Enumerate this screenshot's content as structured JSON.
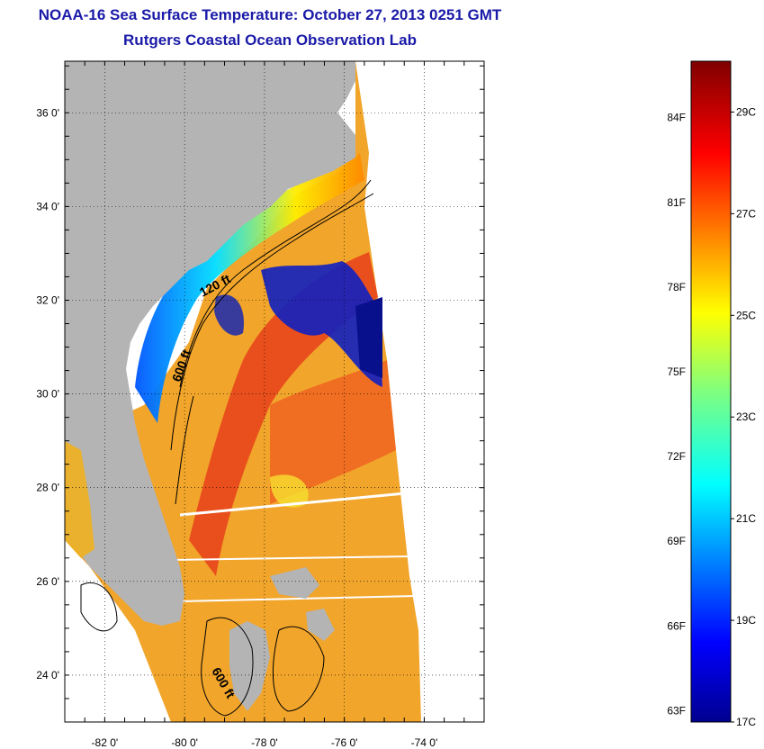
{
  "header": {
    "title": "NOAA-16 Sea Surface Temperature:  October 27, 2013 0251 GMT",
    "subtitle": "Rutgers Coastal Ocean Observation Lab"
  },
  "map": {
    "lon_range": [
      -83.0,
      -72.5
    ],
    "lat_range": [
      23.0,
      37.1
    ],
    "lon_ticks": [
      {
        "value": -82,
        "label": "-82 0'"
      },
      {
        "value": -80,
        "label": "-80 0'"
      },
      {
        "value": -78,
        "label": "-78 0'"
      },
      {
        "value": -76,
        "label": "-76 0'"
      },
      {
        "value": -74,
        "label": "-74 0'"
      }
    ],
    "lat_ticks": [
      {
        "value": 36,
        "label": "36 0'"
      },
      {
        "value": 34,
        "label": "34 0'"
      },
      {
        "value": 32,
        "label": "32 0'"
      },
      {
        "value": 30,
        "label": "30 0'"
      },
      {
        "value": 28,
        "label": "28 0'"
      },
      {
        "value": 26,
        "label": "26 0'"
      },
      {
        "value": 24,
        "label": "24 0'"
      }
    ],
    "grid": "dotted",
    "depth_labels": [
      "120 ft",
      "600 ft",
      "600 ft"
    ],
    "colors": {
      "land": "#b4b4b4",
      "frame": "#000000"
    }
  },
  "colorbar": {
    "fahrenheit_labels": [
      "84F",
      "81F",
      "78F",
      "75F",
      "72F",
      "69F",
      "66F",
      "63F"
    ],
    "celsius_labels": [
      "29C",
      "27C",
      "25C",
      "23C",
      "21C",
      "19C",
      "17C"
    ],
    "range_c": [
      17,
      30
    ],
    "colormap": "jet"
  }
}
